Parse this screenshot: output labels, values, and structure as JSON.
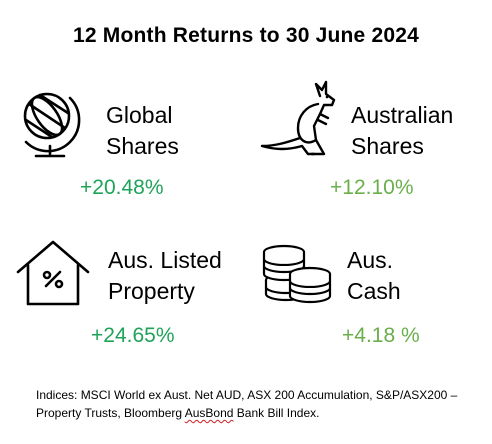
{
  "title": "12 Month Returns to 30 June 2024",
  "cards": [
    {
      "name": "global",
      "label_line1": "Global",
      "label_line2": "Shares",
      "return": "+20.48%",
      "icon": "globe-icon",
      "color": "#1fa35a"
    },
    {
      "name": "australian",
      "label_line1": "Australian",
      "label_line2": "Shares",
      "return": "+12.10%",
      "icon": "kangaroo-icon",
      "color": "#6aaf4c"
    },
    {
      "name": "property",
      "label_line1": "Aus. Listed",
      "label_line2": "Property",
      "return": "+24.65%",
      "icon": "house-percent-icon",
      "color": "#1fa35a"
    },
    {
      "name": "cash",
      "label_line1": "Aus.",
      "label_line2": "Cash",
      "return": "+4.18 %",
      "icon": "coins-icon",
      "color": "#6aaf4c"
    }
  ],
  "footnote": {
    "part1": "Indices: MSCI World ex Aust. Net AUD, ASX 200 Accumulation, S&P/ASX200 – Property Trusts, Bloomberg ",
    "misspelled": "AusBond",
    "part2": " Bank Bill Index."
  }
}
